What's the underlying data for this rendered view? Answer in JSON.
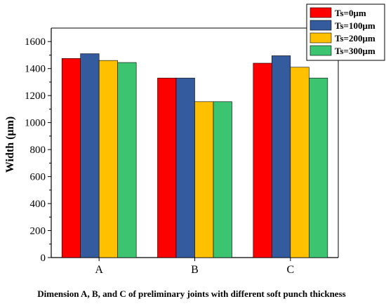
{
  "chart_data": {
    "type": "bar",
    "categories": [
      "A",
      "B",
      "C"
    ],
    "series": [
      {
        "name": "Ts=0μm",
        "values": [
          1475,
          1330,
          1440
        ],
        "color": "#ff0000"
      },
      {
        "name": "Ts=100μm",
        "values": [
          1510,
          1330,
          1495
        ],
        "color": "#335b9e"
      },
      {
        "name": "Ts=200μm",
        "values": [
          1460,
          1155,
          1410
        ],
        "color": "#ffc000"
      },
      {
        "name": "Ts=300μm",
        "values": [
          1445,
          1155,
          1330
        ],
        "color": "#3cc470"
      }
    ],
    "ylabel": "Width (μm)",
    "xlabel": "Dimension A, B, and C  of preliminary joints with different soft punch thickness",
    "ylim": [
      0,
      1700
    ],
    "yticks": [
      0,
      200,
      400,
      600,
      800,
      1000,
      1200,
      1400,
      1600
    ],
    "grid": false,
    "legend_position": "top-right"
  }
}
